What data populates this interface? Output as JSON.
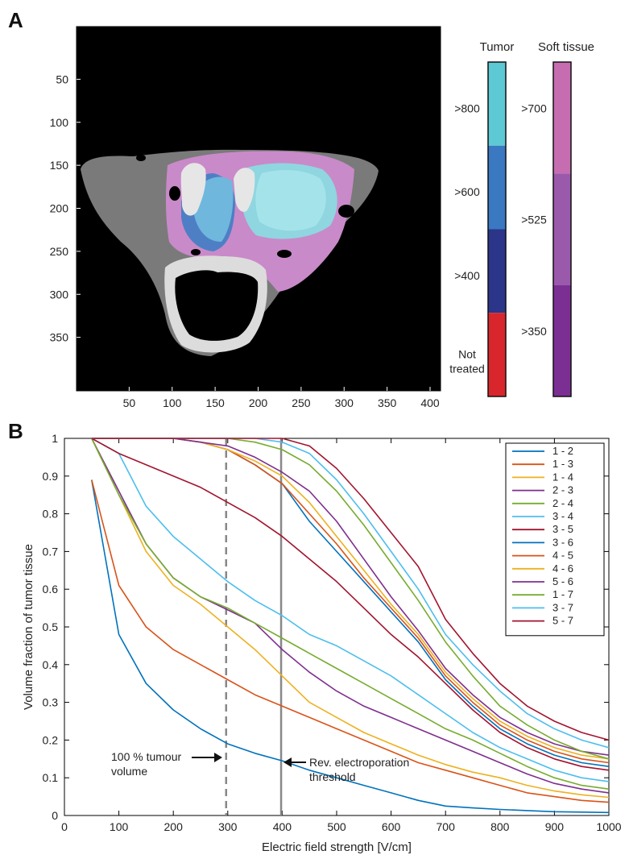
{
  "panel_a": {
    "label": "A",
    "x_ticks": [
      50,
      100,
      150,
      200,
      250,
      300,
      350,
      400
    ],
    "y_ticks": [
      50,
      100,
      150,
      200,
      250,
      300,
      350
    ],
    "legend_tumor": {
      "title": "Tumor",
      "segments": [
        {
          "label": ">800",
          "color": "#5cc9d4"
        },
        {
          "label": ">600",
          "color": "#3a78c2"
        },
        {
          "label": ">400",
          "color": "#2b3589"
        },
        {
          "label": "Not treated",
          "label_line1": "Not",
          "label_line2": "treated",
          "color": "#d8262c"
        }
      ]
    },
    "legend_soft": {
      "title": "Soft tissue",
      "segments": [
        {
          "label": ">700",
          "color": "#c66db1"
        },
        {
          "label": ">525",
          "color": "#9b59ab"
        },
        {
          "label": ">350",
          "color": "#7b2f93"
        }
      ]
    }
  },
  "chart_data": {
    "label": "B",
    "type": "line",
    "xlabel": "Electric field strength [V/cm]",
    "ylabel": "Volume fraction of tumor tissue",
    "xlim": [
      0,
      1000
    ],
    "ylim": [
      0,
      1
    ],
    "x_ticks": [
      0,
      100,
      200,
      300,
      400,
      500,
      600,
      700,
      800,
      900,
      1000
    ],
    "y_ticks": [
      0,
      0.1,
      0.2,
      0.3,
      0.4,
      0.5,
      0.6,
      0.7,
      0.8,
      0.9,
      1
    ],
    "legend_position": "top-right",
    "x": [
      50,
      100,
      150,
      200,
      250,
      300,
      350,
      400,
      450,
      500,
      550,
      600,
      650,
      700,
      750,
      800,
      850,
      900,
      950,
      1000
    ],
    "series": [
      {
        "name": "1 - 2",
        "color": "#0072bd",
        "values": [
          0.89,
          0.48,
          0.35,
          0.28,
          0.23,
          0.19,
          0.165,
          0.145,
          0.12,
          0.1,
          0.08,
          0.06,
          0.04,
          0.025,
          0.02,
          0.016,
          0.013,
          0.01,
          0.009,
          0.008
        ]
      },
      {
        "name": "1 - 3",
        "color": "#d95319",
        "values": [
          0.89,
          0.61,
          0.5,
          0.44,
          0.4,
          0.36,
          0.32,
          0.29,
          0.26,
          0.23,
          0.2,
          0.17,
          0.14,
          0.12,
          0.1,
          0.08,
          0.06,
          0.05,
          0.04,
          0.035
        ]
      },
      {
        "name": "1 - 4",
        "color": "#edb120",
        "values": [
          1.0,
          0.85,
          0.7,
          0.61,
          0.56,
          0.5,
          0.44,
          0.37,
          0.3,
          0.26,
          0.22,
          0.19,
          0.16,
          0.135,
          0.115,
          0.1,
          0.08,
          0.065,
          0.055,
          0.048
        ]
      },
      {
        "name": "2 - 3",
        "color": "#7e2f8e",
        "values": [
          1.0,
          0.86,
          0.72,
          0.63,
          0.58,
          0.545,
          0.51,
          0.44,
          0.38,
          0.33,
          0.29,
          0.26,
          0.23,
          0.2,
          0.17,
          0.14,
          0.11,
          0.085,
          0.07,
          0.06
        ]
      },
      {
        "name": "2 - 4",
        "color": "#77ac30",
        "values": [
          1.0,
          0.85,
          0.72,
          0.63,
          0.58,
          0.55,
          0.51,
          0.47,
          0.43,
          0.39,
          0.35,
          0.31,
          0.27,
          0.23,
          0.2,
          0.165,
          0.13,
          0.1,
          0.08,
          0.07
        ]
      },
      {
        "name": "3 - 4",
        "color": "#4dbeee",
        "values": [
          1.0,
          0.96,
          0.82,
          0.74,
          0.68,
          0.62,
          0.57,
          0.53,
          0.48,
          0.45,
          0.41,
          0.37,
          0.32,
          0.27,
          0.22,
          0.18,
          0.15,
          0.12,
          0.1,
          0.09
        ]
      },
      {
        "name": "3 - 5",
        "color": "#a2142f",
        "values": [
          1.0,
          0.96,
          0.93,
          0.9,
          0.87,
          0.83,
          0.79,
          0.74,
          0.68,
          0.62,
          0.55,
          0.48,
          0.42,
          0.35,
          0.28,
          0.22,
          0.18,
          0.15,
          0.13,
          0.12
        ]
      },
      {
        "name": "3 - 6",
        "color": "#0072bd",
        "values": [
          1.0,
          1.0,
          1.0,
          1.0,
          0.99,
          0.97,
          0.93,
          0.88,
          0.78,
          0.7,
          0.62,
          0.54,
          0.46,
          0.36,
          0.29,
          0.23,
          0.19,
          0.16,
          0.14,
          0.13
        ]
      },
      {
        "name": "4 - 5",
        "color": "#d95319",
        "values": [
          1.0,
          1.0,
          1.0,
          1.0,
          0.99,
          0.97,
          0.93,
          0.88,
          0.8,
          0.72,
          0.63,
          0.55,
          0.47,
          0.37,
          0.3,
          0.24,
          0.2,
          0.17,
          0.15,
          0.14
        ]
      },
      {
        "name": "4 - 6",
        "color": "#edb120",
        "values": [
          1.0,
          1.0,
          1.0,
          1.0,
          0.99,
          0.97,
          0.94,
          0.9,
          0.83,
          0.74,
          0.65,
          0.56,
          0.48,
          0.38,
          0.31,
          0.25,
          0.21,
          0.18,
          0.16,
          0.15
        ]
      },
      {
        "name": "5 - 6",
        "color": "#7e2f8e",
        "values": [
          1.0,
          1.0,
          1.0,
          1.0,
          0.99,
          0.98,
          0.95,
          0.91,
          0.86,
          0.78,
          0.68,
          0.58,
          0.49,
          0.39,
          0.32,
          0.26,
          0.22,
          0.19,
          0.17,
          0.16
        ]
      },
      {
        "name": "1 - 7",
        "color": "#77ac30",
        "values": [
          1.0,
          1.0,
          1.0,
          1.0,
          1.0,
          1.0,
          0.99,
          0.97,
          0.93,
          0.86,
          0.77,
          0.67,
          0.57,
          0.46,
          0.37,
          0.29,
          0.24,
          0.2,
          0.17,
          0.15
        ]
      },
      {
        "name": "3 - 7",
        "color": "#4dbeee",
        "values": [
          1.0,
          1.0,
          1.0,
          1.0,
          1.0,
          1.0,
          1.0,
          0.99,
          0.96,
          0.89,
          0.8,
          0.7,
          0.6,
          0.48,
          0.4,
          0.33,
          0.27,
          0.23,
          0.2,
          0.18
        ]
      },
      {
        "name": "5 - 7",
        "color": "#a2142f",
        "values": [
          1.0,
          1.0,
          1.0,
          1.0,
          1.0,
          1.0,
          1.0,
          1.0,
          0.98,
          0.92,
          0.84,
          0.75,
          0.66,
          0.52,
          0.43,
          0.35,
          0.29,
          0.25,
          0.22,
          0.2
        ]
      }
    ],
    "vlines": [
      {
        "x": 297,
        "style": "dashed"
      },
      {
        "x": 398,
        "style": "solid"
      }
    ],
    "annotations": {
      "tumour": {
        "line1": "100 % tumour",
        "line2": "volume"
      },
      "rev": {
        "line1": "Rev. electroporation",
        "line2": "threshold"
      }
    }
  }
}
